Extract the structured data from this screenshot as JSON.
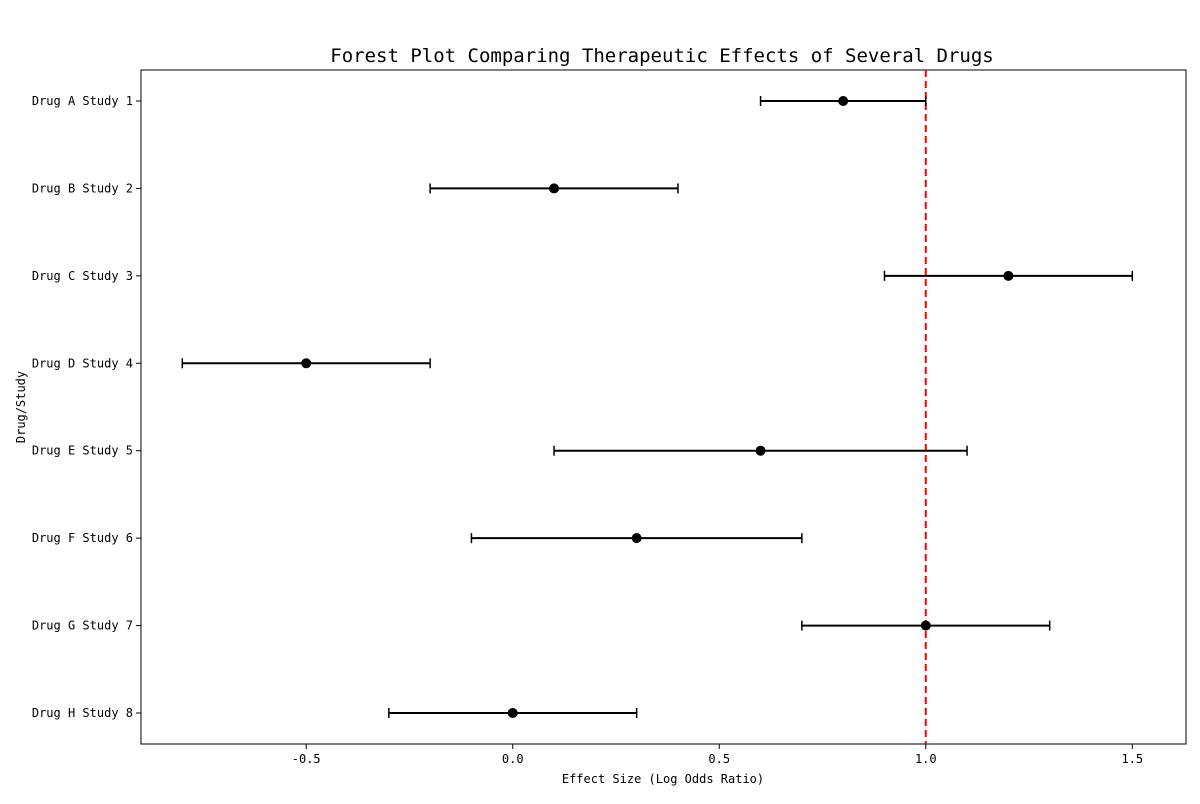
{
  "chart_data": {
    "type": "forest",
    "title": "Forest Plot Comparing Therapeutic Effects of Several Drugs",
    "xlabel": "Effect Size (Log Odds Ratio)",
    "ylabel": "Drug/Study",
    "xlim": [
      -0.9,
      1.63
    ],
    "xticks": [
      -0.5,
      0.0,
      0.5,
      1.0,
      1.5
    ],
    "xtick_labels": [
      "-0.5",
      "0.0",
      "0.5",
      "1.0",
      "1.5"
    ],
    "reference_line": {
      "x": 1.0,
      "color": "#ff0000",
      "style": "dashed"
    },
    "studies": [
      {
        "label": "Drug A Study 1",
        "effect": 0.8,
        "ci_low": 0.6,
        "ci_high": 1.0
      },
      {
        "label": "Drug B Study 2",
        "effect": 0.1,
        "ci_low": -0.2,
        "ci_high": 0.4
      },
      {
        "label": "Drug C Study 3",
        "effect": 1.2,
        "ci_low": 0.9,
        "ci_high": 1.5
      },
      {
        "label": "Drug D Study 4",
        "effect": -0.5,
        "ci_low": -0.8,
        "ci_high": -0.2
      },
      {
        "label": "Drug E Study 5",
        "effect": 0.6,
        "ci_low": 0.1,
        "ci_high": 1.1
      },
      {
        "label": "Drug F Study 6",
        "effect": 0.3,
        "ci_low": -0.1,
        "ci_high": 0.7
      },
      {
        "label": "Drug G Study 7",
        "effect": 1.0,
        "ci_low": 0.7,
        "ci_high": 1.3
      },
      {
        "label": "Drug H Study 8",
        "effect": 0.0,
        "ci_low": -0.3,
        "ci_high": 0.3
      }
    ],
    "marker_color": "#000000",
    "grid": false,
    "legend": "none"
  }
}
